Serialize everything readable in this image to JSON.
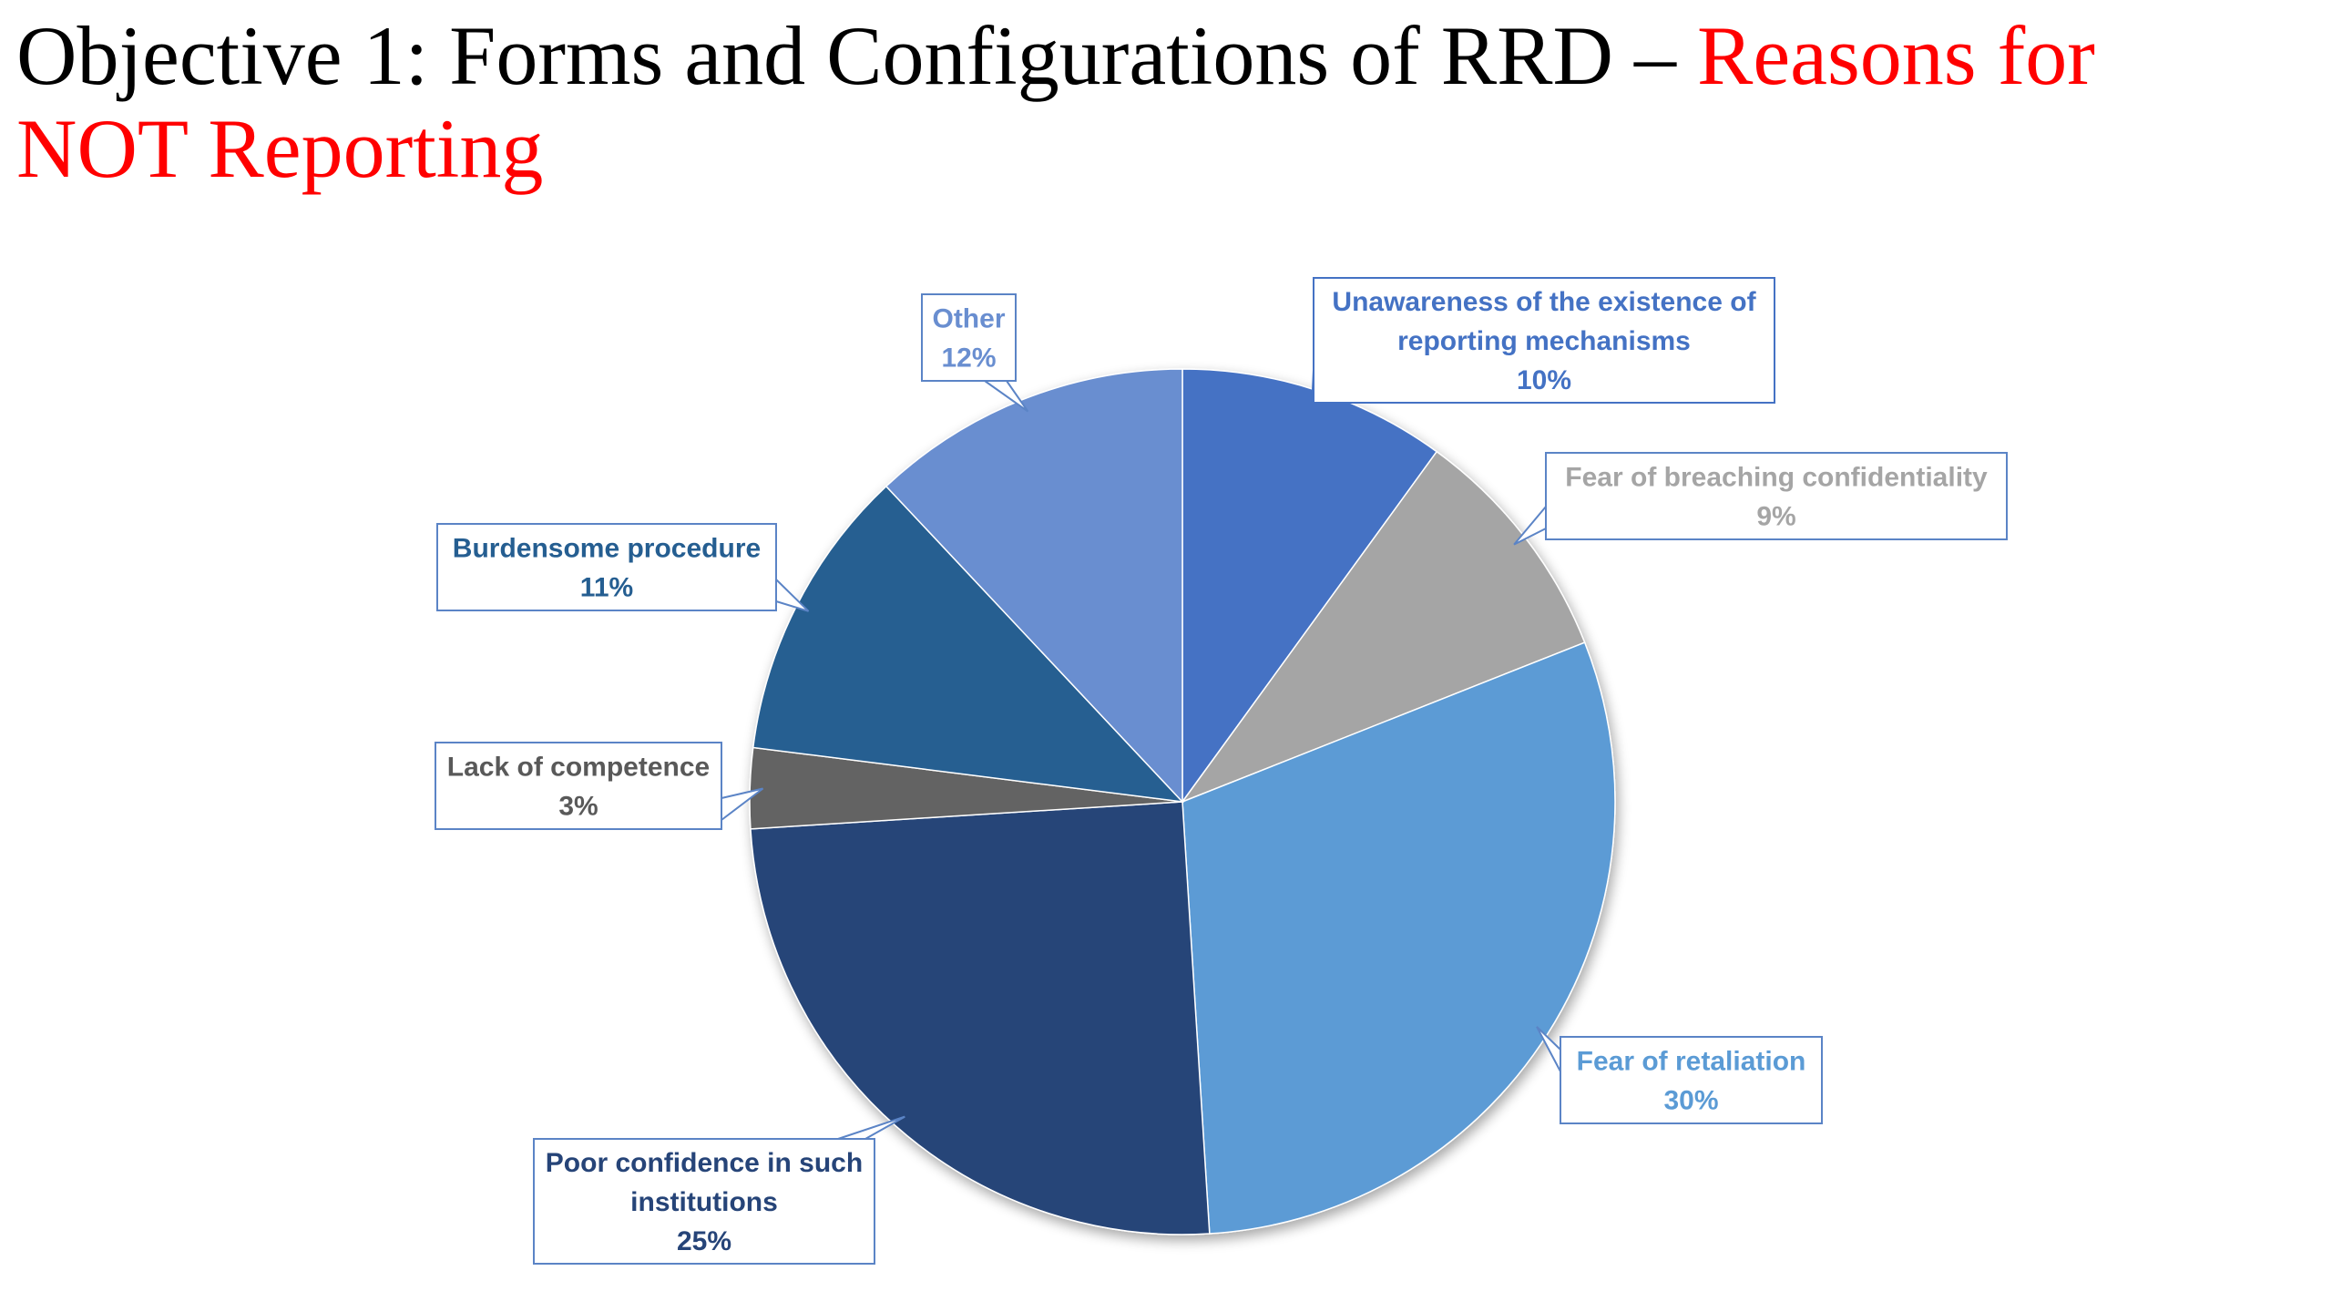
{
  "slide": {
    "title_part1": "Objective 1: Forms and Configurations of RRD – ",
    "title_part2": "Reasons for NOT Reporting",
    "title_accent_color": "#ff0000"
  },
  "chart_data": {
    "type": "pie",
    "title": "",
    "start_angle_deg": 0,
    "direction": "clockwise",
    "legend": "none",
    "slices": [
      {
        "label_lines": [
          "Unawareness of the existence of",
          "reporting mechanisms"
        ],
        "percent_label": "10%",
        "value": 10,
        "color": "#4472c4"
      },
      {
        "label_lines": [
          "Fear of breaching confidentiality"
        ],
        "percent_label": "9%",
        "value": 9,
        "color": "#a5a5a5"
      },
      {
        "label_lines": [
          "Fear of retaliation"
        ],
        "percent_label": "30%",
        "value": 30,
        "color": "#5b9bd5"
      },
      {
        "label_lines": [
          "Poor confidence in such",
          "institutions"
        ],
        "percent_label": "25%",
        "value": 25,
        "color": "#264478"
      },
      {
        "label_lines": [
          "Lack of competence"
        ],
        "percent_label": "3%",
        "value": 3,
        "color": "#636363"
      },
      {
        "label_lines": [
          "Burdensome procedure"
        ],
        "percent_label": "11%",
        "value": 11,
        "color": "#255e91"
      },
      {
        "label_lines": [
          "Other"
        ],
        "percent_label": "12%",
        "value": 12,
        "color": "#698ed0"
      }
    ]
  }
}
